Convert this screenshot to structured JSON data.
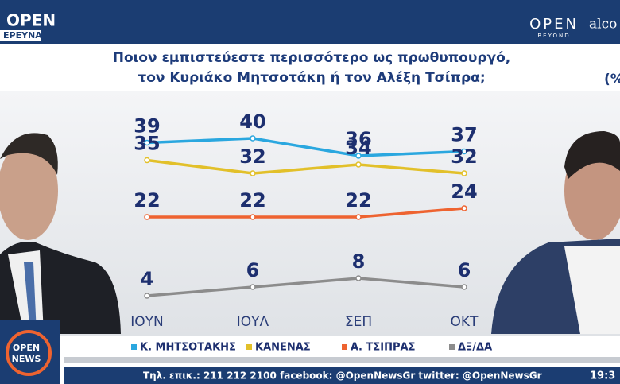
{
  "header": {
    "logo_top": "OPEN",
    "logo_bottom": "ΕΡΕΥΝΑ",
    "partner_top": "OPEN",
    "partner_bottom": "BEYOND",
    "partner2": "alco"
  },
  "chart_data": {
    "type": "line",
    "title": [
      "Ποιον εμπιστεύεστε περισσότερο ως πρωθυπουργό,",
      "τον Κυριάκο Μητσοτάκη ή τον Αλέξη Τσίπρα;"
    ],
    "unit_note": "(%",
    "categories": [
      "ΙΟΥΝ",
      "ΙΟΥΛ",
      "ΣΕΠ",
      "ΟΚΤ"
    ],
    "series": [
      {
        "name": "Κ. ΜΗΤΣΟΤΑΚΗΣ",
        "color": "#2aa7df",
        "values": [
          39,
          40,
          36,
          37
        ]
      },
      {
        "name": "ΚΑΝΕΝΑΣ",
        "color": "#e2c02a",
        "values": [
          35,
          32,
          34,
          32
        ]
      },
      {
        "name": "Α. ΤΣΙΠΡΑΣ",
        "color": "#ee6330",
        "values": [
          22,
          22,
          22,
          24
        ]
      },
      {
        "name": "ΔΞ/ΔΑ",
        "color": "#8c8c8c",
        "values": [
          4,
          6,
          8,
          6
        ]
      }
    ],
    "legend": "bottom"
  },
  "footer": {
    "logo_top": "OPEN",
    "logo_bottom": "NEWS",
    "ticker": "Τηλ. επικ.: 211 212 2100 facebook: @OpenNewsGr twitter: @OpenNewsGr",
    "clock": "19:3"
  }
}
